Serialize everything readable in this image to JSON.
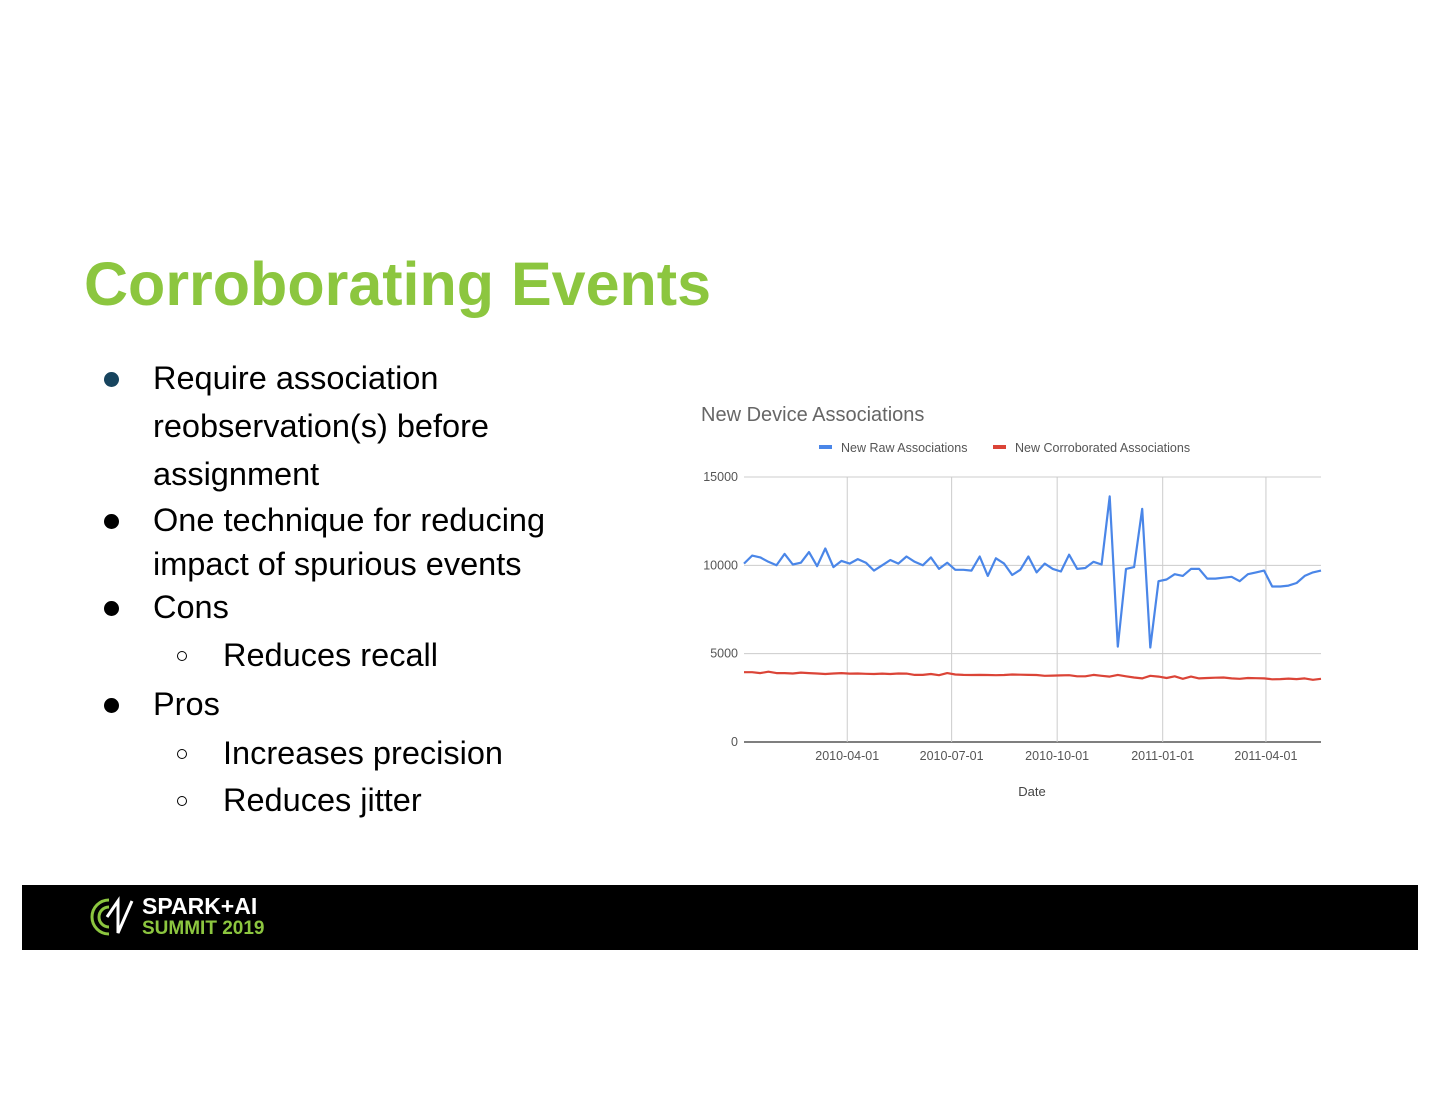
{
  "slide": {
    "title": "Corroborating Events",
    "bullets": [
      {
        "lines": [
          "Require association",
          "reobservation(s) before",
          "assignment"
        ]
      },
      {
        "lines": [
          "One technique for reducing",
          "impact of spurious events"
        ]
      },
      {
        "lines": [
          "Cons"
        ]
      },
      {
        "sub": true,
        "lines": [
          "Reduces recall"
        ]
      },
      {
        "lines": [
          "Pros"
        ]
      },
      {
        "sub": true,
        "lines": [
          "Increases precision"
        ]
      },
      {
        "sub": true,
        "lines": [
          "Reduces jitter"
        ]
      }
    ]
  },
  "colors": {
    "title": "#8cc63f",
    "first_bullet": "#17445e",
    "raw_series": "#4a86e8",
    "corroborated_series": "#db4437",
    "footer_bg": "#000000",
    "brand_green": "#8cc63f"
  },
  "footer": {
    "logo_line1": "SPARK+AI",
    "logo_line2": "SUMMIT 2019",
    "logo_icon": "spark-ai-summit-logo-icon"
  },
  "chart_data": {
    "type": "line",
    "title": "New Device Associations",
    "xlabel": "Date",
    "ylabel": "",
    "x_start": "2010-01-01",
    "x_end": "2011-05-19",
    "ylim": [
      0,
      15000
    ],
    "yticks": [
      0,
      5000,
      10000,
      15000
    ],
    "xticks": [
      "2010-04-01",
      "2010-07-01",
      "2010-10-01",
      "2011-01-01",
      "2011-04-01"
    ],
    "grid": true,
    "legend_position": "top",
    "series": [
      {
        "name": "New Raw Associations",
        "color": "#4a86e8",
        "values": [
          10100,
          10550,
          10450,
          10200,
          10000,
          10650,
          10050,
          10150,
          10750,
          9950,
          10950,
          9900,
          10250,
          10100,
          10350,
          10150,
          9700,
          10000,
          10300,
          10100,
          10500,
          10200,
          10000,
          10450,
          9800,
          10150,
          9750,
          9750,
          9700,
          10500,
          9400,
          10400,
          10100,
          9450,
          9750,
          10500,
          9600,
          10100,
          9800,
          9650,
          10600,
          9800,
          9850,
          10200,
          10050,
          13900,
          5400,
          9800,
          9900,
          13200,
          5350,
          9100,
          9200,
          9500,
          9400,
          9800,
          9800,
          9250,
          9250,
          9300,
          9350,
          9100,
          9500,
          9600,
          9700,
          8800,
          8800,
          8850,
          9000,
          9400,
          9600,
          9700
        ]
      },
      {
        "name": "New Corroborated Associations",
        "color": "#db4437",
        "values": [
          3950,
          3950,
          3900,
          3980,
          3900,
          3900,
          3880,
          3930,
          3900,
          3880,
          3850,
          3880,
          3900,
          3870,
          3880,
          3860,
          3850,
          3870,
          3850,
          3880,
          3870,
          3800,
          3800,
          3850,
          3780,
          3900,
          3820,
          3800,
          3790,
          3800,
          3790,
          3780,
          3790,
          3820,
          3810,
          3800,
          3790,
          3750,
          3760,
          3770,
          3780,
          3720,
          3720,
          3800,
          3750,
          3700,
          3800,
          3720,
          3650,
          3600,
          3750,
          3700,
          3620,
          3720,
          3580,
          3700,
          3600,
          3620,
          3640,
          3650,
          3600,
          3580,
          3620,
          3610,
          3600,
          3550,
          3560,
          3590,
          3560,
          3600,
          3520,
          3580
        ]
      }
    ]
  }
}
